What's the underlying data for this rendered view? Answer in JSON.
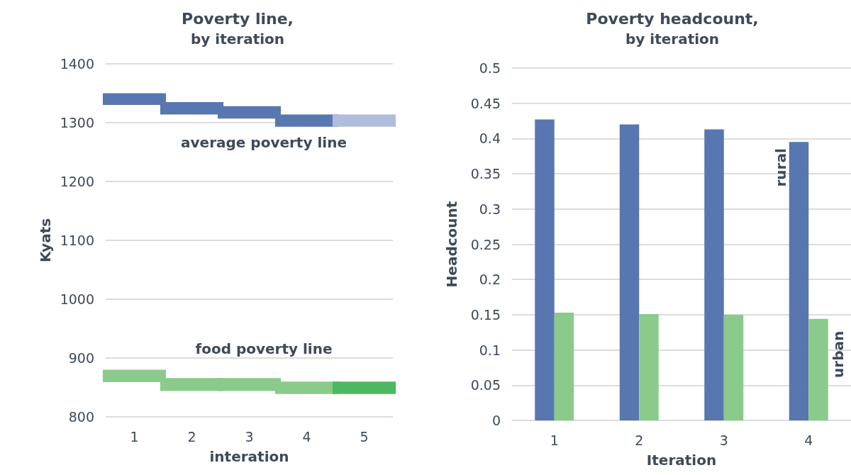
{
  "chart_data": [
    {
      "type": "bar",
      "title": "Poverty line,",
      "subtitle": "by iteration",
      "xlabel": "interation",
      "ylabel": "Kyats",
      "categories": [
        "1",
        "2",
        "3",
        "4",
        "5"
      ],
      "ylim": [
        800,
        1400
      ],
      "yticks": [
        800,
        900,
        1000,
        1100,
        1200,
        1300,
        1400
      ],
      "grid": "y",
      "series": [
        {
          "name": "average poverty line",
          "base": [
            1330,
            1314,
            1307,
            1293,
            1293
          ],
          "values": [
            20,
            21,
            21,
            21,
            21
          ],
          "colors": [
            "#5876b0",
            "#5876b0",
            "#5876b0",
            "#5876b0",
            "#b0bcdc"
          ]
        },
        {
          "name": "food poverty line",
          "base": [
            859,
            844,
            844,
            839,
            839
          ],
          "values": [
            21,
            22,
            22,
            21,
            21
          ],
          "colors": [
            "#8acb8b",
            "#8acb8b",
            "#8acb8b",
            "#8acb8b",
            "#4db860"
          ]
        }
      ]
    },
    {
      "type": "bar",
      "title": "Poverty headcount,",
      "subtitle": "by iteration",
      "xlabel": "Iteration",
      "ylabel": "Headcount",
      "categories": [
        "1",
        "2",
        "3",
        "4"
      ],
      "ylim": [
        0,
        0.5
      ],
      "yticks": [
        0,
        0.05,
        0.1,
        0.15,
        0.2,
        0.25,
        0.3,
        0.35,
        0.4,
        0.45,
        0.5
      ],
      "grid": "y",
      "series": [
        {
          "name": "rural",
          "color": "#5876b0",
          "values": [
            0.427,
            0.42,
            0.413,
            0.395
          ]
        },
        {
          "name": "urban",
          "color": "#8acb8b",
          "values": [
            0.153,
            0.151,
            0.15,
            0.144
          ]
        }
      ]
    }
  ]
}
